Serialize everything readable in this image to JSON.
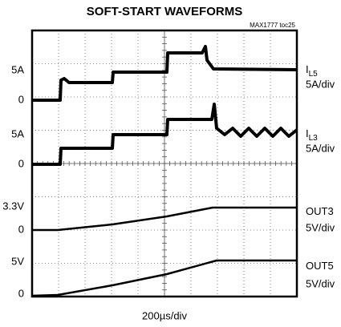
{
  "title": "SOFT-START WAVEFORMS",
  "note": "MAX1777 toc25",
  "left_labels": [
    "5A",
    "0",
    "5A",
    "0",
    "3.3V",
    "0",
    "5V",
    "0"
  ],
  "channels": [
    {
      "name": "I",
      "subscript": "L5",
      "scale": "5A/div"
    },
    {
      "name": "I",
      "subscript": "L3",
      "scale": "5A/div"
    },
    {
      "name": "OUT3",
      "scale": "5V/div"
    },
    {
      "name": "OUT5",
      "scale": "5V/div"
    }
  ],
  "x_label": "200µs/div"
}
